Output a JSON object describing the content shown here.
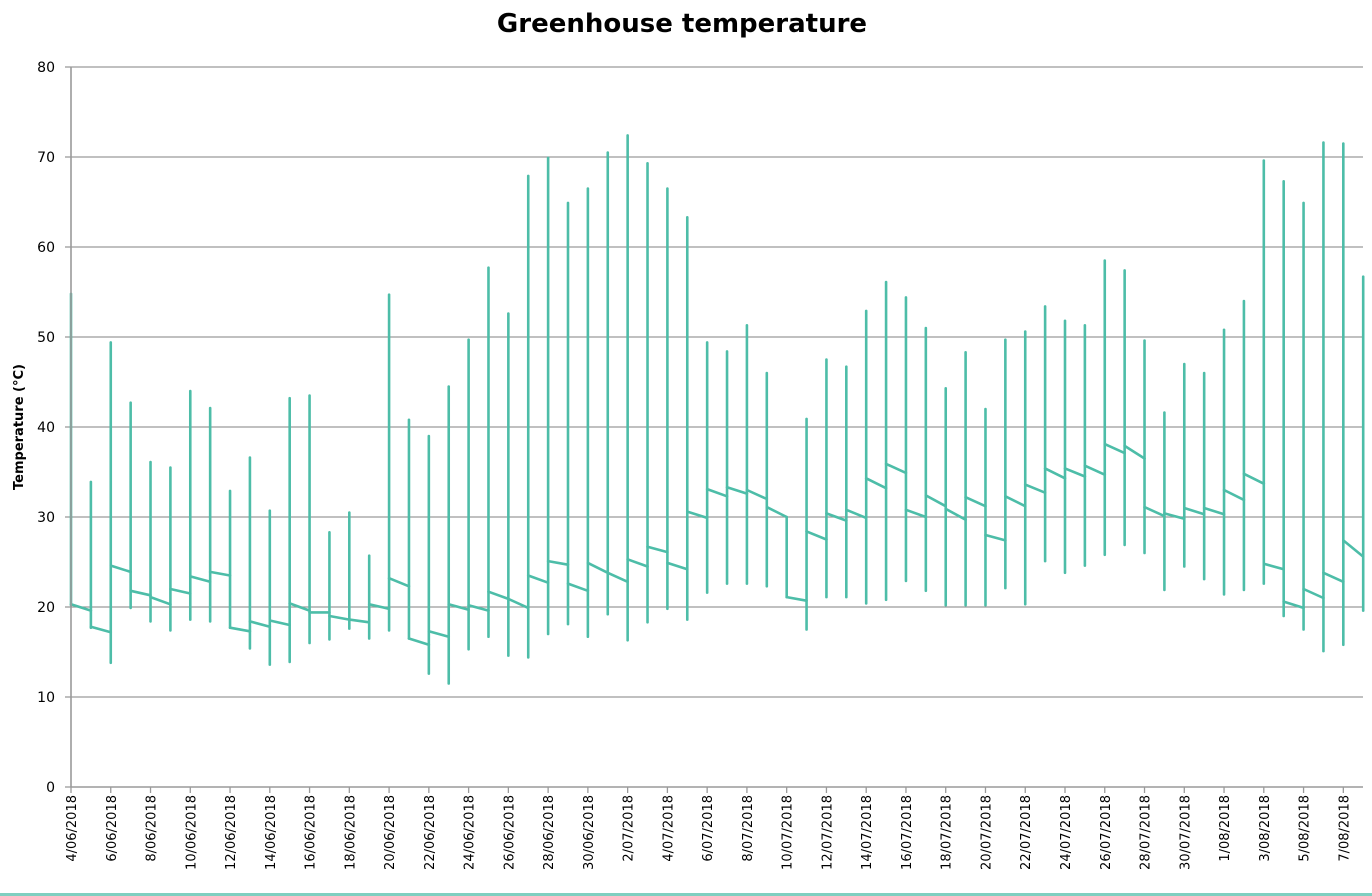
{
  "chart_data": {
    "type": "stock",
    "title": "Greenhouse temperature",
    "xlabel": "",
    "ylabel": "Temperature (°C)",
    "ylim": [
      0,
      80
    ],
    "yticks": [
      0,
      10,
      20,
      30,
      40,
      50,
      60,
      70,
      80
    ],
    "grid": true,
    "legend": "none",
    "series_color": "#4dbda8",
    "x_tick_labels": [
      "4/06/2018",
      "6/06/2018",
      "8/06/2018",
      "10/06/2018",
      "12/06/2018",
      "14/06/2018",
      "16/06/2018",
      "18/06/2018",
      "20/06/2018",
      "22/06/2018",
      "24/06/2018",
      "26/06/2018",
      "28/06/2018",
      "30/06/2018",
      "2/07/2018",
      "4/07/2018",
      "6/07/2018",
      "8/07/2018",
      "10/07/2018",
      "12/07/2018",
      "14/07/2018",
      "16/07/2018",
      "18/07/2018",
      "20/07/2018",
      "22/07/2018",
      "24/07/2018",
      "26/07/2018",
      "28/07/2018",
      "30/07/2018",
      "1/08/2018",
      "3/08/2018",
      "5/08/2018",
      "7/08/2018"
    ],
    "fields": [
      "min",
      "max",
      "start",
      "end"
    ],
    "days": [
      [
        20.2,
        54.8,
        20.3,
        19.6
      ],
      [
        17.7,
        33.9,
        17.8,
        17.2
      ],
      [
        13.8,
        49.4,
        24.6,
        23.9
      ],
      [
        19.9,
        42.7,
        21.8,
        21.3
      ],
      [
        18.4,
        36.1,
        21.1,
        20.3
      ],
      [
        17.4,
        35.5,
        22.0,
        21.5
      ],
      [
        18.6,
        44.0,
        23.4,
        22.8
      ],
      [
        18.4,
        42.1,
        23.9,
        23.5
      ],
      [
        17.7,
        32.9,
        17.7,
        17.3
      ],
      [
        15.4,
        36.6,
        18.4,
        17.8
      ],
      [
        13.6,
        30.7,
        18.5,
        18.0
      ],
      [
        13.9,
        43.2,
        20.4,
        19.6
      ],
      [
        16.0,
        43.5,
        19.4,
        19.4
      ],
      [
        16.4,
        28.3,
        19.0,
        18.6
      ],
      [
        17.6,
        30.5,
        18.6,
        18.3
      ],
      [
        16.5,
        25.7,
        20.3,
        19.8
      ],
      [
        17.4,
        54.7,
        23.2,
        22.3
      ],
      [
        16.5,
        40.8,
        16.5,
        15.8
      ],
      [
        12.6,
        39.0,
        17.3,
        16.7
      ],
      [
        11.5,
        44.5,
        20.3,
        19.7
      ],
      [
        15.3,
        49.7,
        20.2,
        19.6
      ],
      [
        16.7,
        57.7,
        21.7,
        20.9
      ],
      [
        14.6,
        52.6,
        20.9,
        19.9
      ],
      [
        14.4,
        67.9,
        23.5,
        22.7
      ],
      [
        17.0,
        69.9,
        25.1,
        24.7
      ],
      [
        18.1,
        64.9,
        22.6,
        21.8
      ],
      [
        16.7,
        66.5,
        24.9,
        23.8
      ],
      [
        19.2,
        70.5,
        23.8,
        22.8
      ],
      [
        16.3,
        72.4,
        25.3,
        24.5
      ],
      [
        18.3,
        69.3,
        26.7,
        26.1
      ],
      [
        19.8,
        66.5,
        24.9,
        24.2
      ],
      [
        18.6,
        63.3,
        30.6,
        29.9
      ],
      [
        21.6,
        49.4,
        33.1,
        32.3
      ],
      [
        22.6,
        48.4,
        33.3,
        32.6
      ],
      [
        22.6,
        51.3,
        33.0,
        32.0
      ],
      [
        22.3,
        46.0,
        31.1,
        30.0
      ],
      [
        21.1,
        30.0,
        21.1,
        20.7
      ],
      [
        17.5,
        40.9,
        28.4,
        27.5
      ],
      [
        21.1,
        47.5,
        30.4,
        29.6
      ],
      [
        21.1,
        46.7,
        30.8,
        29.9
      ],
      [
        20.4,
        52.9,
        34.3,
        33.2
      ],
      [
        20.8,
        56.1,
        35.9,
        34.9
      ],
      [
        22.9,
        54.4,
        30.8,
        30.0
      ],
      [
        21.8,
        51.0,
        32.4,
        31.2
      ],
      [
        20.2,
        44.3,
        30.9,
        29.7
      ],
      [
        20.2,
        48.3,
        32.2,
        31.2
      ],
      [
        20.2,
        42.0,
        28.0,
        27.4
      ],
      [
        22.1,
        49.7,
        32.3,
        31.2
      ],
      [
        20.3,
        50.6,
        33.6,
        32.7
      ],
      [
        25.1,
        53.4,
        35.4,
        34.3
      ],
      [
        23.8,
        51.8,
        35.4,
        34.5
      ],
      [
        24.6,
        51.3,
        35.7,
        34.7
      ],
      [
        25.8,
        58.5,
        38.1,
        37.1
      ],
      [
        26.9,
        57.4,
        37.9,
        36.5
      ],
      [
        26.0,
        49.6,
        31.1,
        30.1
      ],
      [
        21.9,
        41.6,
        30.4,
        29.8
      ],
      [
        24.5,
        47.0,
        31.0,
        30.3
      ],
      [
        23.1,
        46.0,
        31.0,
        30.3
      ],
      [
        21.4,
        50.8,
        33.0,
        31.9
      ],
      [
        21.9,
        54.0,
        34.8,
        33.7
      ],
      [
        22.6,
        69.6,
        24.8,
        24.2
      ],
      [
        19.0,
        67.3,
        20.6,
        19.9
      ],
      [
        17.5,
        64.9,
        22.0,
        21.0
      ],
      [
        15.1,
        71.6,
        23.8,
        22.8
      ],
      [
        15.8,
        71.5,
        27.4,
        25.6
      ],
      [
        19.6,
        56.7,
        null,
        null
      ]
    ]
  }
}
